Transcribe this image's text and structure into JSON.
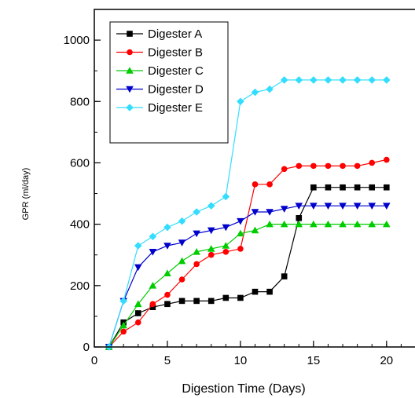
{
  "chart_data": {
    "type": "line",
    "title": "",
    "xlabel": "Digestion Time (Days)",
    "ylabel": "GPR (ml/day)",
    "xlim": [
      0,
      22
    ],
    "ylim": [
      0,
      1100
    ],
    "xticks": [
      0,
      5,
      10,
      15,
      20
    ],
    "yticks": [
      0,
      200,
      400,
      600,
      800,
      1000
    ],
    "x_minor_step": 1,
    "y_minor_step": 100,
    "grid": false,
    "legend_position": "top-left",
    "x": [
      1,
      2,
      3,
      4,
      5,
      6,
      7,
      8,
      9,
      10,
      11,
      12,
      13,
      14,
      15,
      16,
      17,
      18,
      19,
      20
    ],
    "series": [
      {
        "name": "Digester A",
        "color": "#000000",
        "marker": "square",
        "values": [
          0,
          80,
          110,
          130,
          140,
          150,
          150,
          150,
          160,
          160,
          180,
          180,
          230,
          420,
          520,
          520,
          520,
          520,
          520,
          520
        ]
      },
      {
        "name": "Digester B",
        "color": "#ff0000",
        "marker": "circle",
        "values": [
          0,
          50,
          80,
          140,
          170,
          220,
          270,
          300,
          310,
          320,
          530,
          530,
          580,
          590,
          590,
          590,
          590,
          590,
          600,
          610
        ]
      },
      {
        "name": "Digester C",
        "color": "#00cc00",
        "marker": "triangle-up",
        "values": [
          0,
          70,
          140,
          200,
          240,
          280,
          310,
          320,
          330,
          370,
          380,
          400,
          400,
          400,
          400,
          400,
          400,
          400,
          400,
          400
        ]
      },
      {
        "name": "Digester D",
        "color": "#0000cc",
        "marker": "triangle-down",
        "values": [
          0,
          150,
          260,
          310,
          330,
          340,
          370,
          380,
          390,
          410,
          440,
          440,
          450,
          460,
          460,
          460,
          460,
          460,
          460,
          460
        ]
      },
      {
        "name": "Digester E",
        "color": "#33ddff",
        "marker": "diamond",
        "values": [
          0,
          150,
          330,
          360,
          390,
          410,
          440,
          460,
          490,
          800,
          830,
          840,
          870,
          870,
          870,
          870,
          870,
          870,
          870,
          870
        ]
      }
    ]
  }
}
